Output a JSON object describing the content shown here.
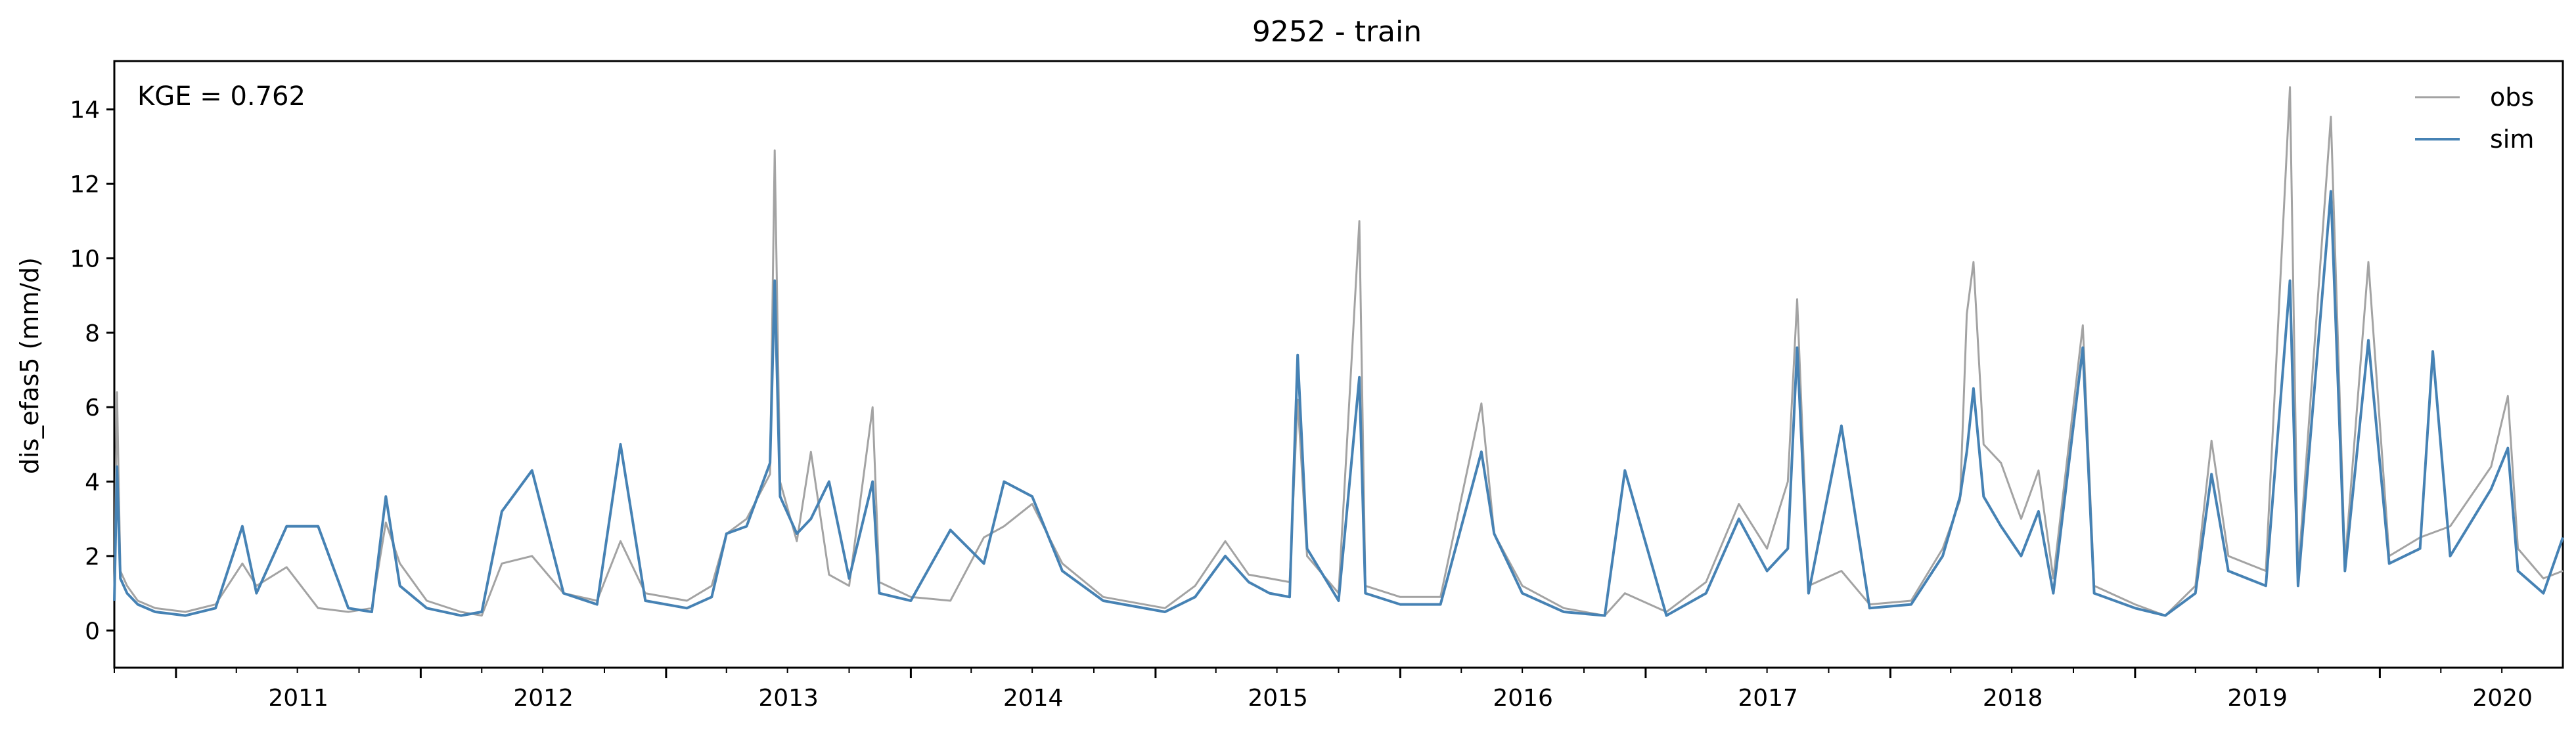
{
  "chart_data": {
    "type": "line",
    "title": "9252 - train",
    "xlabel": "",
    "ylabel": "dis_efas5 (mm/d)",
    "annotation": "KGE = 0.762",
    "ylim": [
      -1,
      15.3
    ],
    "xlim": [
      "2010-10-01",
      "2020-09-30"
    ],
    "yticks": [
      0,
      2,
      4,
      6,
      8,
      10,
      12,
      14
    ],
    "xticks": [
      "2011",
      "2012",
      "2013",
      "2014",
      "2015",
      "2016",
      "2017",
      "2018",
      "2019",
      "2020"
    ],
    "grid": false,
    "legend": {
      "position": "top-right",
      "entries": [
        "obs",
        "sim"
      ]
    },
    "colors": {
      "obs": "#a3a3a3",
      "sim": "#4682b4"
    },
    "series": [
      {
        "name": "obs",
        "points": [
          [
            "2010-10-01",
            0.9
          ],
          [
            "2010-10-05",
            6.4
          ],
          [
            "2010-10-10",
            1.6
          ],
          [
            "2010-10-20",
            1.2
          ],
          [
            "2010-11-05",
            0.8
          ],
          [
            "2010-12-01",
            0.6
          ],
          [
            "2011-01-15",
            0.5
          ],
          [
            "2011-03-01",
            0.7
          ],
          [
            "2011-04-10",
            1.8
          ],
          [
            "2011-05-01",
            1.2
          ],
          [
            "2011-06-15",
            1.7
          ],
          [
            "2011-08-01",
            0.6
          ],
          [
            "2011-09-15",
            0.5
          ],
          [
            "2011-10-20",
            0.6
          ],
          [
            "2011-11-10",
            2.9
          ],
          [
            "2011-12-01",
            1.8
          ],
          [
            "2012-01-10",
            0.8
          ],
          [
            "2012-03-01",
            0.5
          ],
          [
            "2012-04-01",
            0.4
          ],
          [
            "2012-05-01",
            1.8
          ],
          [
            "2012-06-15",
            2.0
          ],
          [
            "2012-08-01",
            1.0
          ],
          [
            "2012-09-20",
            0.8
          ],
          [
            "2012-10-25",
            2.4
          ],
          [
            "2012-12-01",
            1.0
          ],
          [
            "2013-02-01",
            0.8
          ],
          [
            "2013-03-10",
            1.2
          ],
          [
            "2013-04-01",
            2.6
          ],
          [
            "2013-05-01",
            3.0
          ],
          [
            "2013-06-05",
            4.2
          ],
          [
            "2013-06-12",
            12.9
          ],
          [
            "2013-06-20",
            4.0
          ],
          [
            "2013-07-15",
            2.4
          ],
          [
            "2013-08-05",
            4.8
          ],
          [
            "2013-09-01",
            1.5
          ],
          [
            "2013-10-01",
            1.2
          ],
          [
            "2013-11-05",
            6.0
          ],
          [
            "2013-11-15",
            1.3
          ],
          [
            "2014-01-01",
            0.9
          ],
          [
            "2014-03-01",
            0.8
          ],
          [
            "2014-04-20",
            2.5
          ],
          [
            "2014-05-20",
            2.8
          ],
          [
            "2014-07-01",
            3.4
          ],
          [
            "2014-08-15",
            1.8
          ],
          [
            "2014-10-15",
            0.9
          ],
          [
            "2015-01-15",
            0.6
          ],
          [
            "2015-03-01",
            1.2
          ],
          [
            "2015-04-15",
            2.4
          ],
          [
            "2015-05-20",
            1.5
          ],
          [
            "2015-06-20",
            1.4
          ],
          [
            "2015-07-20",
            1.3
          ],
          [
            "2015-08-01",
            6.2
          ],
          [
            "2015-08-15",
            2.0
          ],
          [
            "2015-10-01",
            1.0
          ],
          [
            "2015-11-01",
            11.0
          ],
          [
            "2015-11-10",
            1.2
          ],
          [
            "2016-01-01",
            0.9
          ],
          [
            "2016-03-01",
            0.9
          ],
          [
            "2016-05-01",
            6.1
          ],
          [
            "2016-05-20",
            2.6
          ],
          [
            "2016-07-01",
            1.2
          ],
          [
            "2016-09-01",
            0.6
          ],
          [
            "2016-11-01",
            0.4
          ],
          [
            "2016-12-01",
            1.0
          ],
          [
            "2017-02-01",
            0.5
          ],
          [
            "2017-04-01",
            1.3
          ],
          [
            "2017-05-20",
            3.4
          ],
          [
            "2017-07-01",
            2.2
          ],
          [
            "2017-08-01",
            4.0
          ],
          [
            "2017-08-15",
            8.9
          ],
          [
            "2017-09-01",
            1.2
          ],
          [
            "2017-10-20",
            1.6
          ],
          [
            "2017-12-01",
            0.7
          ],
          [
            "2018-02-01",
            0.8
          ],
          [
            "2018-03-20",
            2.2
          ],
          [
            "2018-04-15",
            3.5
          ],
          [
            "2018-04-25",
            8.5
          ],
          [
            "2018-05-05",
            9.9
          ],
          [
            "2018-05-20",
            5.0
          ],
          [
            "2018-06-15",
            4.5
          ],
          [
            "2018-07-15",
            3.0
          ],
          [
            "2018-08-10",
            4.3
          ],
          [
            "2018-09-01",
            1.4
          ],
          [
            "2018-10-15",
            8.2
          ],
          [
            "2018-11-01",
            1.2
          ],
          [
            "2019-01-01",
            0.7
          ],
          [
            "2019-02-15",
            0.4
          ],
          [
            "2019-04-01",
            1.2
          ],
          [
            "2019-04-25",
            5.1
          ],
          [
            "2019-05-20",
            2.0
          ],
          [
            "2019-07-15",
            1.6
          ],
          [
            "2019-08-20",
            14.6
          ],
          [
            "2019-09-01",
            1.5
          ],
          [
            "2019-10-20",
            13.8
          ],
          [
            "2019-11-10",
            1.8
          ],
          [
            "2019-12-15",
            9.9
          ],
          [
            "2020-01-15",
            2.0
          ],
          [
            "2020-03-01",
            2.5
          ],
          [
            "2020-04-15",
            2.8
          ],
          [
            "2020-06-15",
            4.4
          ],
          [
            "2020-07-10",
            6.3
          ],
          [
            "2020-07-25",
            2.2
          ],
          [
            "2020-09-01",
            1.4
          ],
          [
            "2020-09-30",
            1.6
          ]
        ]
      },
      {
        "name": "sim",
        "points": [
          [
            "2010-10-01",
            0.8
          ],
          [
            "2010-10-05",
            4.4
          ],
          [
            "2010-10-10",
            1.4
          ],
          [
            "2010-10-20",
            1.0
          ],
          [
            "2010-11-05",
            0.7
          ],
          [
            "2010-12-01",
            0.5
          ],
          [
            "2011-01-15",
            0.4
          ],
          [
            "2011-03-01",
            0.6
          ],
          [
            "2011-04-10",
            2.8
          ],
          [
            "2011-05-01",
            1.0
          ],
          [
            "2011-06-15",
            2.8
          ],
          [
            "2011-08-01",
            2.8
          ],
          [
            "2011-09-15",
            0.6
          ],
          [
            "2011-10-20",
            0.5
          ],
          [
            "2011-11-10",
            3.6
          ],
          [
            "2011-12-01",
            1.2
          ],
          [
            "2012-01-10",
            0.6
          ],
          [
            "2012-03-01",
            0.4
          ],
          [
            "2012-04-01",
            0.5
          ],
          [
            "2012-05-01",
            3.2
          ],
          [
            "2012-06-15",
            4.3
          ],
          [
            "2012-08-01",
            1.0
          ],
          [
            "2012-09-20",
            0.7
          ],
          [
            "2012-10-25",
            5.0
          ],
          [
            "2012-12-01",
            0.8
          ],
          [
            "2013-02-01",
            0.6
          ],
          [
            "2013-03-10",
            0.9
          ],
          [
            "2013-04-01",
            2.6
          ],
          [
            "2013-05-01",
            2.8
          ],
          [
            "2013-06-05",
            4.5
          ],
          [
            "2013-06-12",
            9.4
          ],
          [
            "2013-06-20",
            3.6
          ],
          [
            "2013-07-15",
            2.6
          ],
          [
            "2013-08-05",
            3.0
          ],
          [
            "2013-09-01",
            4.0
          ],
          [
            "2013-10-01",
            1.4
          ],
          [
            "2013-11-05",
            4.0
          ],
          [
            "2013-11-15",
            1.0
          ],
          [
            "2014-01-01",
            0.8
          ],
          [
            "2014-03-01",
            2.7
          ],
          [
            "2014-04-20",
            1.8
          ],
          [
            "2014-05-20",
            4.0
          ],
          [
            "2014-07-01",
            3.6
          ],
          [
            "2014-08-15",
            1.6
          ],
          [
            "2014-10-15",
            0.8
          ],
          [
            "2015-01-15",
            0.5
          ],
          [
            "2015-03-01",
            0.9
          ],
          [
            "2015-04-15",
            2.0
          ],
          [
            "2015-05-20",
            1.3
          ],
          [
            "2015-06-20",
            1.0
          ],
          [
            "2015-07-20",
            0.9
          ],
          [
            "2015-08-01",
            7.4
          ],
          [
            "2015-08-15",
            2.2
          ],
          [
            "2015-10-01",
            0.8
          ],
          [
            "2015-11-01",
            6.8
          ],
          [
            "2015-11-10",
            1.0
          ],
          [
            "2016-01-01",
            0.7
          ],
          [
            "2016-03-01",
            0.7
          ],
          [
            "2016-05-01",
            4.8
          ],
          [
            "2016-05-20",
            2.6
          ],
          [
            "2016-07-01",
            1.0
          ],
          [
            "2016-09-01",
            0.5
          ],
          [
            "2016-11-01",
            0.4
          ],
          [
            "2016-12-01",
            4.3
          ],
          [
            "2017-02-01",
            0.4
          ],
          [
            "2017-04-01",
            1.0
          ],
          [
            "2017-05-20",
            3.0
          ],
          [
            "2017-07-01",
            1.6
          ],
          [
            "2017-08-01",
            2.2
          ],
          [
            "2017-08-15",
            7.6
          ],
          [
            "2017-09-01",
            1.0
          ],
          [
            "2017-10-20",
            5.5
          ],
          [
            "2017-12-01",
            0.6
          ],
          [
            "2018-02-01",
            0.7
          ],
          [
            "2018-03-20",
            2.0
          ],
          [
            "2018-04-15",
            3.6
          ],
          [
            "2018-04-25",
            4.8
          ],
          [
            "2018-05-05",
            6.5
          ],
          [
            "2018-05-20",
            3.6
          ],
          [
            "2018-06-15",
            2.8
          ],
          [
            "2018-07-15",
            2.0
          ],
          [
            "2018-08-10",
            3.2
          ],
          [
            "2018-09-01",
            1.0
          ],
          [
            "2018-10-15",
            7.6
          ],
          [
            "2018-11-01",
            1.0
          ],
          [
            "2019-01-01",
            0.6
          ],
          [
            "2019-02-15",
            0.4
          ],
          [
            "2019-04-01",
            1.0
          ],
          [
            "2019-04-25",
            4.2
          ],
          [
            "2019-05-20",
            1.6
          ],
          [
            "2019-07-15",
            1.2
          ],
          [
            "2019-08-20",
            9.4
          ],
          [
            "2019-09-01",
            1.2
          ],
          [
            "2019-10-20",
            11.8
          ],
          [
            "2019-11-10",
            1.6
          ],
          [
            "2019-12-15",
            7.8
          ],
          [
            "2020-01-15",
            1.8
          ],
          [
            "2020-03-01",
            2.2
          ],
          [
            "2020-03-20",
            7.5
          ],
          [
            "2020-04-15",
            2.0
          ],
          [
            "2020-06-15",
            3.8
          ],
          [
            "2020-07-10",
            4.9
          ],
          [
            "2020-07-25",
            1.6
          ],
          [
            "2020-09-01",
            1.0
          ],
          [
            "2020-09-30",
            2.5
          ]
        ]
      }
    ]
  }
}
